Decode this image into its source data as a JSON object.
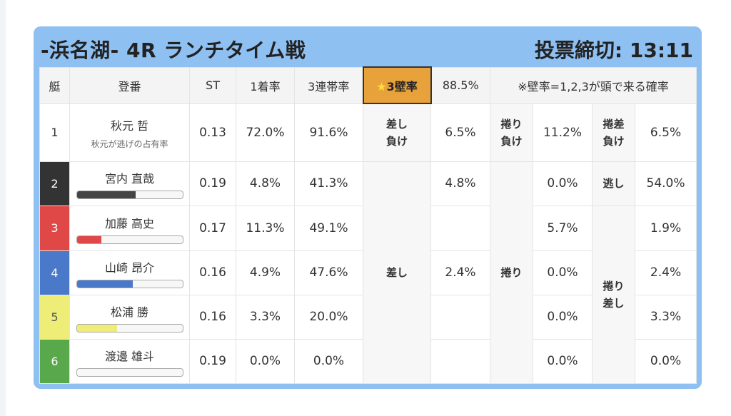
{
  "race": {
    "title": "-浜名湖- 4R ランチタイム戦",
    "deadline": "投票締切: 13:11"
  },
  "headers": {
    "boat": "艇",
    "number": "登番",
    "st": "ST",
    "first_rate": "1着率",
    "top3_rate": "3連帯率",
    "wall_star": "★",
    "wall_label": "3壁率",
    "wall_value": "88.5%",
    "note": "※壁率=1,2,3が頭で来る確率"
  },
  "racers": [
    {
      "boat": "1",
      "name": "秋元 哲",
      "sub": "秋元が逃げの占有率",
      "st": "0.13",
      "first": "72.0%",
      "top3": "91.6%",
      "bar_pct": 0,
      "bar_color": "#ffffff"
    },
    {
      "boat": "2",
      "name": "宮内 直哉",
      "st": "0.19",
      "first": "4.8%",
      "top3": "41.3%",
      "bar_pct": 56,
      "bar_color": "#444444"
    },
    {
      "boat": "3",
      "name": "加藤 高史",
      "st": "0.17",
      "first": "11.3%",
      "top3": "49.1%",
      "bar_pct": 23,
      "bar_color": "#e04848"
    },
    {
      "boat": "4",
      "name": "山崎 昂介",
      "st": "0.16",
      "first": "4.9%",
      "top3": "47.6%",
      "bar_pct": 53,
      "bar_color": "#4979c8"
    },
    {
      "boat": "5",
      "name": "松浦 勝",
      "st": "0.16",
      "first": "3.3%",
      "top3": "20.0%",
      "bar_pct": 38,
      "bar_color": "#eded78"
    },
    {
      "boat": "6",
      "name": "渡邊 雄斗",
      "st": "0.19",
      "first": "0.0%",
      "top3": "0.0%",
      "bar_pct": 0,
      "bar_color": "#5aa84c"
    }
  ],
  "outcomes": {
    "sashi_make_label": "差し\n負け",
    "sashi_make_value": "6.5%",
    "makuri_make_label": "捲り\n負け",
    "makuri_make_value": "11.2%",
    "makurisashi_make_label": "捲差\n負け",
    "makurisashi_make_value": "6.5%",
    "sashi_label": "差し",
    "makuri_label": "捲り",
    "nige_label": "逃し",
    "makurisashi_label": "捲り\n差し",
    "sashi_values": [
      "4.8%",
      "",
      "2.4%",
      "",
      ""
    ],
    "makuri_values": [
      "0.0%",
      "5.7%",
      "0.0%",
      "0.0%",
      "0.0%"
    ],
    "nige_value": "54.0%",
    "makurisashi_values": [
      "1.9%",
      "2.4%",
      "3.3%",
      "0.0%"
    ]
  },
  "colors": {
    "card": "#8fc0f2",
    "wall_header": "#e8a23c",
    "boat2": "#333333",
    "boat3": "#e04848",
    "boat4": "#4979c8",
    "boat5": "#eded78",
    "boat6": "#5aa84c"
  }
}
